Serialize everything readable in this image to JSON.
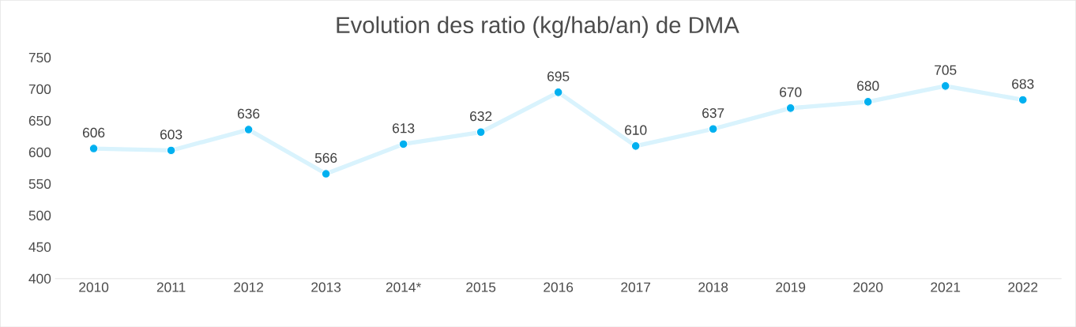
{
  "chart_data": {
    "type": "line",
    "title": "Evolution des ratio (kg/hab/an) de DMA",
    "categories": [
      "2010",
      "2011",
      "2012",
      "2013",
      "2014*",
      "2015",
      "2016",
      "2017",
      "2018",
      "2019",
      "2020",
      "2021",
      "2022"
    ],
    "values": [
      606,
      603,
      636,
      566,
      613,
      632,
      695,
      610,
      637,
      670,
      680,
      705,
      683
    ],
    "color": "#00b0f0",
    "ylim": [
      400,
      750
    ],
    "yticks": [
      400,
      450,
      500,
      550,
      600,
      650,
      700,
      750
    ],
    "data_labels": true,
    "marker": "circle",
    "line_style": "solid"
  }
}
